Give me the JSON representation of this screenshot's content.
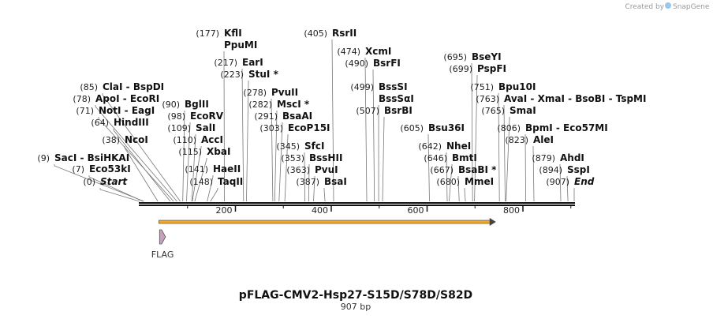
{
  "credit": {
    "prefix": "Created by",
    "brand": "SnapGene"
  },
  "map": {
    "title": "pFLAG-CMV2-Hsp27-S15D/S78D/S82D",
    "length_label": "907 bp",
    "total_bp": 907,
    "ruler_ticks": [
      "200",
      "400",
      "600",
      "800"
    ],
    "sites": [
      {
        "num": "(0)",
        "names": [
          "Start"
        ],
        "bp": 0,
        "italic": true
      },
      {
        "num": "(7)",
        "names": [
          "Eco53kI"
        ],
        "bp": 7
      },
      {
        "num": "(9)",
        "names": [
          "SacI",
          "BsiHKAI"
        ],
        "bp": 9
      },
      {
        "num": "(38)",
        "names": [
          "NcoI"
        ],
        "bp": 38
      },
      {
        "num": "(64)",
        "names": [
          "HindIII"
        ],
        "bp": 64
      },
      {
        "num": "(71)",
        "names": [
          "NotI",
          "EagI"
        ],
        "bp": 71
      },
      {
        "num": "(78)",
        "names": [
          "ApoI",
          "EcoRI"
        ],
        "bp": 78
      },
      {
        "num": "(85)",
        "names": [
          "ClaI",
          "BspDI"
        ],
        "bp": 85
      },
      {
        "num": "(90)",
        "names": [
          "BglII"
        ],
        "bp": 90
      },
      {
        "num": "(98)",
        "names": [
          "EcoRV"
        ],
        "bp": 98
      },
      {
        "num": "(109)",
        "names": [
          "SalI"
        ],
        "bp": 109
      },
      {
        "num": "(110)",
        "names": [
          "AccI"
        ],
        "bp": 110
      },
      {
        "num": "(115)",
        "names": [
          "XbaI"
        ],
        "bp": 115
      },
      {
        "num": "(141)",
        "names": [
          "HaeII"
        ],
        "bp": 141
      },
      {
        "num": "(148)",
        "names": [
          "TaqII"
        ],
        "bp": 148
      },
      {
        "num": "(177)",
        "names": [
          "KflI",
          "PpuMI"
        ],
        "bp": 177
      },
      {
        "num": "(217)",
        "names": [
          "EarI"
        ],
        "bp": 217
      },
      {
        "num": "(223)",
        "names": [
          "StuI *"
        ],
        "bp": 223
      },
      {
        "num": "(278)",
        "names": [
          "PvuII"
        ],
        "bp": 278
      },
      {
        "num": "(282)",
        "names": [
          "MscI *"
        ],
        "bp": 282
      },
      {
        "num": "(291)",
        "names": [
          "BsaAI"
        ],
        "bp": 291
      },
      {
        "num": "(303)",
        "names": [
          "EcoP15I"
        ],
        "bp": 303
      },
      {
        "num": "(345)",
        "names": [
          "SfcI"
        ],
        "bp": 345
      },
      {
        "num": "(353)",
        "names": [
          "BssHII"
        ],
        "bp": 353
      },
      {
        "num": "(363)",
        "names": [
          "PvuI"
        ],
        "bp": 363
      },
      {
        "num": "(387)",
        "names": [
          "BsaI"
        ],
        "bp": 387
      },
      {
        "num": "(405)",
        "names": [
          "RsrII"
        ],
        "bp": 405
      },
      {
        "num": "(474)",
        "names": [
          "XcmI"
        ],
        "bp": 474
      },
      {
        "num": "(490)",
        "names": [
          "BsrFI"
        ],
        "bp": 490
      },
      {
        "num": "(499)",
        "names": [
          "BssSI",
          "BssSαI"
        ],
        "bp": 499
      },
      {
        "num": "(507)",
        "names": [
          "BsrBI"
        ],
        "bp": 507
      },
      {
        "num": "(605)",
        "names": [
          "Bsu36I"
        ],
        "bp": 605
      },
      {
        "num": "(642)",
        "names": [
          "NheI"
        ],
        "bp": 642
      },
      {
        "num": "(646)",
        "names": [
          "BmtI"
        ],
        "bp": 646
      },
      {
        "num": "(667)",
        "names": [
          "BsaBI *"
        ],
        "bp": 667
      },
      {
        "num": "(680)",
        "names": [
          "MmeI"
        ],
        "bp": 680
      },
      {
        "num": "(695)",
        "names": [
          "BseYI"
        ],
        "bp": 695
      },
      {
        "num": "(699)",
        "names": [
          "PspFI"
        ],
        "bp": 699
      },
      {
        "num": "(751)",
        "names": [
          "Bpu10I"
        ],
        "bp": 751
      },
      {
        "num": "(763)",
        "names": [
          "AvaI",
          "XmaI",
          "BsoBI",
          "TspMI"
        ],
        "bp": 763
      },
      {
        "num": "(765)",
        "names": [
          "SmaI"
        ],
        "bp": 765
      },
      {
        "num": "(806)",
        "names": [
          "BpmI",
          "Eco57MI"
        ],
        "bp": 806
      },
      {
        "num": "(823)",
        "names": [
          "AleI"
        ],
        "bp": 823
      },
      {
        "num": "(879)",
        "names": [
          "AhdI"
        ],
        "bp": 879
      },
      {
        "num": "(894)",
        "names": [
          "SspI"
        ],
        "bp": 894
      },
      {
        "num": "(907)",
        "names": [
          "End"
        ],
        "bp": 907,
        "italic": true
      }
    ],
    "features": [
      {
        "name": "FLAG",
        "start_bp": 40,
        "end_bp": 64,
        "color": "#c8a0be"
      }
    ],
    "orf": {
      "start_bp": 40,
      "end_bp": 742,
      "color": "#f5a623"
    }
  }
}
